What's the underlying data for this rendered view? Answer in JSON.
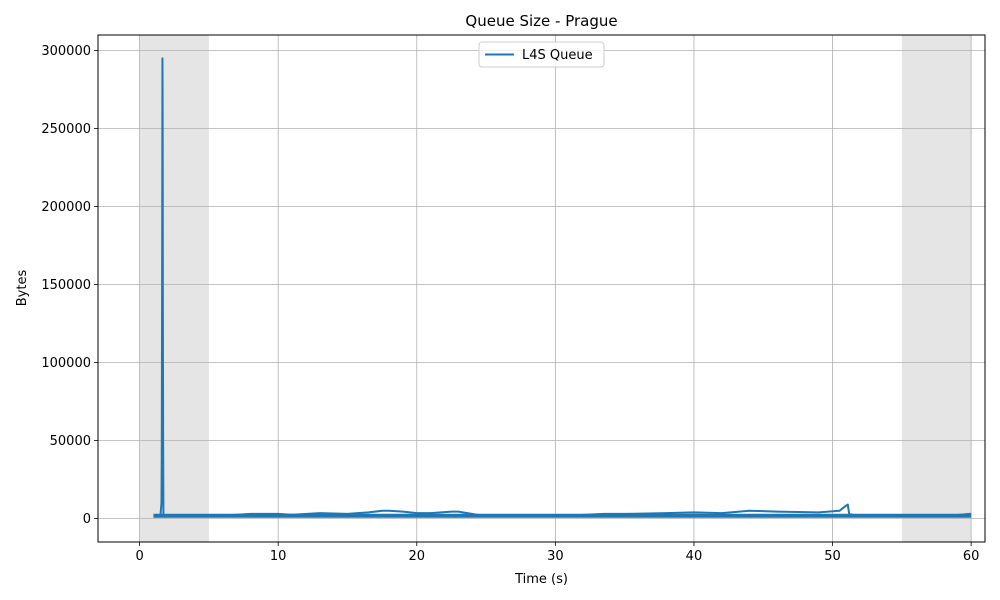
{
  "chart_data": {
    "type": "line",
    "title": "Queue Size - Prague",
    "xlabel": "Time (s)",
    "ylabel": "Bytes",
    "xlim": [
      -3,
      61
    ],
    "ylim": [
      -15000,
      310000
    ],
    "xticks": [
      0,
      10,
      20,
      30,
      40,
      50,
      60
    ],
    "yticks": [
      0,
      50000,
      100000,
      150000,
      200000,
      250000,
      300000
    ],
    "grid": true,
    "legend_position": "top-center",
    "shaded_regions": [
      [
        0,
        5
      ],
      [
        55,
        60
      ]
    ],
    "series": [
      {
        "name": "L4S Queue",
        "color": "#1f77b4",
        "x": [
          1.0,
          1.1,
          1.3,
          1.5,
          1.58,
          1.6,
          1.62,
          1.63,
          1.64,
          1.65,
          1.66,
          1.67,
          1.68,
          1.7,
          1.72,
          1.75,
          2.0,
          3.0,
          5.0,
          7.0,
          8.0,
          9.0,
          10.0,
          11.0,
          13.0,
          15.0,
          16.5,
          17.5,
          18.0,
          19.0,
          20.0,
          21.0,
          22.5,
          23.0,
          25.0,
          30.0,
          33.5,
          35.0,
          38.0,
          40.0,
          42.0,
          44.0,
          46.0,
          49.0,
          50.5,
          51.0,
          51.1,
          51.2,
          52.0,
          55.0,
          58.0,
          59.9,
          60.0
        ],
        "y": [
          1500,
          1500,
          1500,
          1500,
          10000,
          40000,
          125000,
          170000,
          230000,
          295000,
          270000,
          220000,
          130000,
          50000,
          3000,
          1500,
          1500,
          1500,
          1500,
          2500,
          3000,
          3000,
          3000,
          2500,
          3500,
          3000,
          4000,
          5000,
          5000,
          4500,
          3500,
          3500,
          4500,
          4500,
          1500,
          1500,
          3000,
          3000,
          3500,
          4000,
          3500,
          5000,
          4500,
          4000,
          5000,
          8500,
          9000,
          3000,
          1500,
          1500,
          1500,
          3000,
          3000
        ]
      }
    ]
  }
}
